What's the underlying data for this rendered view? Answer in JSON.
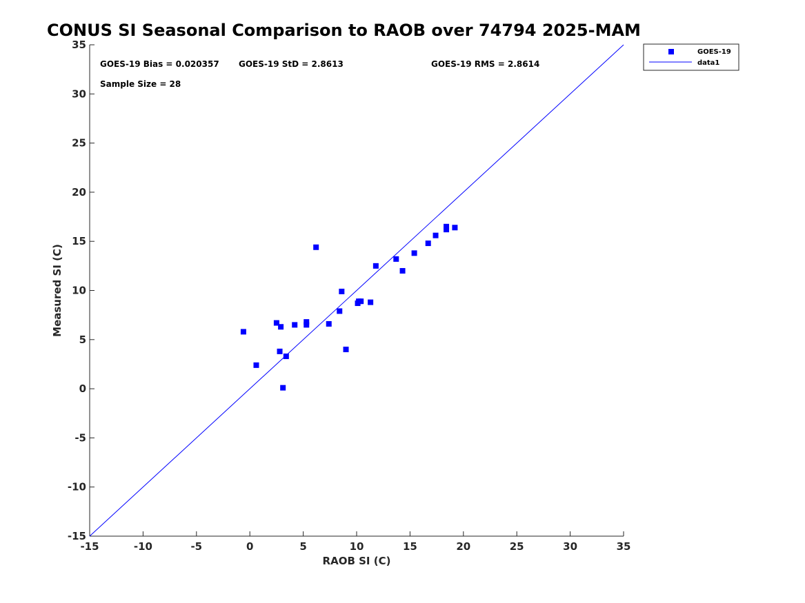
{
  "chart_data": {
    "type": "scatter",
    "title": "CONUS SI Seasonal Comparison to RAOB over 74794 2025-MAM",
    "xlabel": "RAOB SI (C)",
    "ylabel": "Measured SI (C)",
    "xlim": [
      -15,
      35
    ],
    "ylim": [
      -15,
      35
    ],
    "xticks": [
      -15,
      -10,
      -5,
      0,
      5,
      10,
      15,
      20,
      25,
      30,
      35
    ],
    "yticks": [
      -15,
      -10,
      -5,
      0,
      5,
      10,
      15,
      20,
      25,
      30,
      35
    ],
    "grid": false,
    "legend_position": "top-right-outside",
    "series": [
      {
        "name": "GOES-19",
        "marker": "square",
        "color": "#0000ff",
        "points": [
          [
            -0.6,
            5.8
          ],
          [
            0.6,
            2.4
          ],
          [
            2.5,
            6.7
          ],
          [
            2.8,
            3.8
          ],
          [
            2.9,
            6.3
          ],
          [
            3.1,
            0.1
          ],
          [
            3.4,
            3.3
          ],
          [
            4.2,
            6.5
          ],
          [
            5.3,
            6.5
          ],
          [
            5.3,
            6.8
          ],
          [
            6.2,
            14.4
          ],
          [
            7.4,
            6.6
          ],
          [
            8.4,
            7.9
          ],
          [
            8.6,
            9.9
          ],
          [
            9.0,
            4.0
          ],
          [
            10.1,
            8.7
          ],
          [
            10.2,
            8.9
          ],
          [
            10.4,
            8.9
          ],
          [
            11.3,
            8.8
          ],
          [
            11.8,
            12.5
          ],
          [
            13.7,
            13.2
          ],
          [
            14.3,
            12.0
          ],
          [
            15.4,
            13.8
          ],
          [
            16.7,
            14.8
          ],
          [
            17.4,
            15.6
          ],
          [
            18.4,
            16.2
          ],
          [
            18.4,
            16.5
          ],
          [
            19.2,
            16.4
          ]
        ]
      },
      {
        "name": "data1",
        "type": "line",
        "color": "#0000ff",
        "x": [
          -15,
          35
        ],
        "y": [
          -15,
          35
        ]
      }
    ],
    "annotations": {
      "bias": "GOES-19 Bias = 0.020357",
      "std": "GOES-19 StD = 2.8613",
      "rms": "GOES-19 RMS = 2.8614",
      "sample_size": "Sample Size = 28"
    }
  }
}
